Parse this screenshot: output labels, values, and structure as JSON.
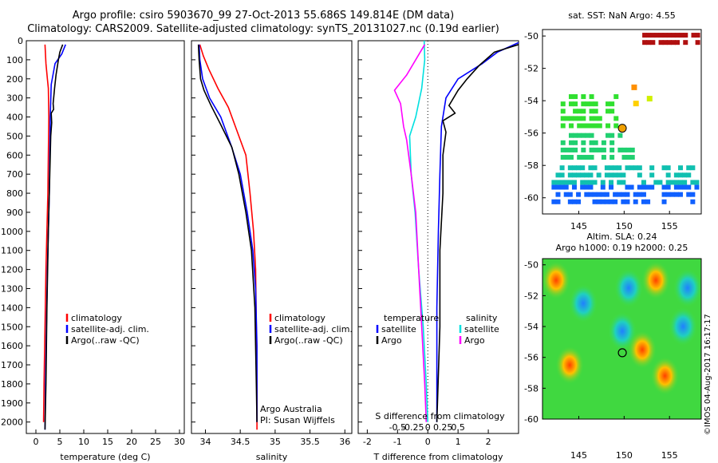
{
  "title_line1": "Argo profile: csiro 5903670_99 27-Oct-2013 55.686S 149.814E (DM data)",
  "title_line2": "Climatology: CARS2009. Satellite-adjusted climatology: synTS_20131027.nc (0.19d earlier)",
  "credit": "©IMOS 04-Aug-2017 16:17:17",
  "colors": {
    "climatology": "#ff0000",
    "satellite": "#0000ff",
    "argo": "#000000",
    "salinity_satellite": "#00e0e0",
    "salinity_argo": "#ff00ff"
  },
  "chart_data": [
    {
      "id": "temperature",
      "type": "line",
      "xlabel": "temperature (deg C)",
      "ylabel": "",
      "xlim": [
        -2,
        31
      ],
      "ylim": [
        2060,
        0
      ],
      "xticks": [
        0,
        5,
        10,
        15,
        20,
        25,
        30
      ],
      "yticks": [
        0,
        100,
        200,
        300,
        400,
        500,
        600,
        700,
        800,
        900,
        1000,
        1100,
        1200,
        1300,
        1400,
        1500,
        1600,
        1700,
        1800,
        1900,
        2000
      ],
      "legend": [
        {
          "label": "climatology",
          "color": "#ff0000"
        },
        {
          "label": "satellite-adj. clim.",
          "color": "#0000ff"
        },
        {
          "label": "Argo(..raw -QC)",
          "color": "#000000"
        }
      ],
      "series": [
        {
          "name": "climatology",
          "color": "#ff0000",
          "x": [
            1.9,
            2.1,
            2.4,
            2.6,
            2.7,
            2.6,
            2.5,
            2.3,
            2.1,
            1.9,
            1.7,
            1.6
          ],
          "y": [
            20,
            120,
            200,
            250,
            400,
            600,
            800,
            1000,
            1200,
            1500,
            1800,
            2000
          ]
        },
        {
          "name": "satellite-adj. clim.",
          "color": "#0000ff",
          "x": [
            6.2,
            5.4,
            4.0,
            3.2,
            3.0,
            2.9,
            2.8,
            2.6,
            2.4,
            2.2,
            2.0,
            1.9
          ],
          "y": [
            20,
            70,
            120,
            230,
            400,
            600,
            800,
            1000,
            1200,
            1500,
            1800,
            2040
          ]
        },
        {
          "name": "Argo(..raw -QC)",
          "color": "#000000",
          "x": [
            5.6,
            5.0,
            4.7,
            4.2,
            3.9,
            3.6,
            3.7,
            3.2,
            3.3,
            3.1,
            2.9,
            2.6,
            2.3,
            2.1,
            1.9
          ],
          "y": [
            20,
            60,
            100,
            180,
            250,
            330,
            360,
            380,
            430,
            500,
            700,
            1000,
            1400,
            1800,
            2040
          ]
        }
      ]
    },
    {
      "id": "salinity",
      "type": "line",
      "xlabel": "salinity",
      "ylabel": "",
      "xlim": [
        33.8,
        36.1
      ],
      "ylim": [
        2060,
        0
      ],
      "xticks": [
        34,
        34.5,
        35,
        35.5,
        36
      ],
      "legend": [
        {
          "label": "climatology",
          "color": "#ff0000"
        },
        {
          "label": "satellite-adj. clim.",
          "color": "#0000ff"
        },
        {
          "label": "Argo(..raw -QC)",
          "color": "#000000"
        }
      ],
      "annotations": [
        "Argo Australia",
        "PI: Susan Wijffels"
      ],
      "series": [
        {
          "name": "climatology",
          "color": "#ff0000",
          "x": [
            33.92,
            33.97,
            34.05,
            34.18,
            34.33,
            34.48,
            34.58,
            34.64,
            34.69,
            34.72,
            34.73,
            34.74,
            34.74
          ],
          "y": [
            20,
            80,
            150,
            250,
            350,
            500,
            600,
            800,
            1000,
            1200,
            1500,
            1800,
            2040
          ]
        },
        {
          "name": "satellite-adj. clim.",
          "color": "#0000ff",
          "x": [
            33.91,
            33.92,
            33.96,
            34.06,
            34.22,
            34.37,
            34.5,
            34.6,
            34.68,
            34.72,
            34.74,
            34.74
          ],
          "y": [
            20,
            100,
            200,
            300,
            400,
            550,
            700,
            900,
            1100,
            1300,
            1600,
            2000
          ]
        },
        {
          "name": "Argo(..raw -QC)",
          "color": "#000000",
          "x": [
            33.9,
            33.91,
            33.93,
            33.98,
            34.08,
            34.22,
            34.38,
            34.48,
            34.58,
            34.66,
            34.71,
            34.73,
            34.74
          ],
          "y": [
            20,
            100,
            200,
            260,
            340,
            440,
            560,
            700,
            900,
            1100,
            1400,
            1800,
            2000
          ]
        }
      ]
    },
    {
      "id": "differences",
      "type": "line",
      "xlabel": "T difference from climatology",
      "xlabel2": "S difference from climatology",
      "ylabel": "",
      "xlim": [
        -2.3,
        3.0
      ],
      "ylim": [
        2060,
        0
      ],
      "xticks": [
        -2,
        -1,
        0,
        1,
        2
      ],
      "xticks2_values": [
        -0.5,
        -0.25,
        0,
        0.25,
        0.5
      ],
      "xticks2_labels": [
        "-0.5",
        "-0.25",
        "0",
        "0.25",
        "0.5"
      ],
      "legend_temperature": {
        "heading": "temperature",
        "entries": [
          {
            "label": "satellite",
            "color": "#0000ff"
          },
          {
            "label": "Argo",
            "color": "#000000"
          }
        ]
      },
      "legend_salinity": {
        "heading": "salinity",
        "entries": [
          {
            "label": "satellite",
            "color": "#00e0e0"
          },
          {
            "label": "Argo",
            "color": "#ff00ff"
          }
        ]
      },
      "series": [
        {
          "name": "T satellite",
          "color": "#0000ff",
          "x": [
            3.0,
            2.3,
            1.8,
            1.0,
            0.6,
            0.45,
            0.4,
            0.35,
            0.3,
            0.3,
            0.3
          ],
          "y": [
            10,
            60,
            120,
            200,
            300,
            450,
            700,
            1000,
            1400,
            1800,
            2000
          ]
        },
        {
          "name": "T Argo",
          "color": "#000000",
          "x": [
            3.0,
            2.2,
            1.7,
            1.3,
            1.0,
            0.7,
            0.9,
            0.5,
            0.6,
            0.5,
            0.5,
            0.4,
            0.4,
            0.3
          ],
          "y": [
            20,
            60,
            130,
            200,
            260,
            340,
            380,
            420,
            480,
            600,
            800,
            1100,
            1500,
            2000
          ]
        },
        {
          "name": "S satellite",
          "color": "#00e0e0",
          "x": [
            -0.12,
            -0.1,
            -0.2,
            -0.4,
            -0.6,
            -0.55,
            -0.42,
            -0.3,
            -0.15,
            -0.05,
            0.0
          ],
          "y": [
            0,
            100,
            250,
            400,
            500,
            700,
            900,
            1200,
            1500,
            1800,
            2000
          ]
        },
        {
          "name": "S Argo",
          "color": "#ff00ff",
          "x": [
            -0.1,
            -0.7,
            -1.1,
            -0.9,
            -0.8,
            -0.7,
            -0.55,
            -0.4,
            -0.3,
            -0.2,
            -0.1,
            -0.05
          ],
          "y": [
            20,
            180,
            260,
            330,
            450,
            520,
            700,
            900,
            1200,
            1500,
            1800,
            2000
          ]
        }
      ]
    },
    {
      "id": "sst_map",
      "type": "heatmap",
      "title": "sat. SST: NaN Argo: 4.55",
      "xlim": [
        141,
        158.5
      ],
      "ylim": [
        -61,
        -49.6
      ],
      "xticks": [
        145,
        150,
        155
      ],
      "yticks": [
        -50,
        -52,
        -54,
        -56,
        -58,
        -60
      ],
      "marker": {
        "lon": 149.8,
        "lat": -55.7
      },
      "blocks": [
        {
          "lon0": 142,
          "lon1": 158,
          "lat0": -60.2,
          "lat1": -59.2,
          "value": "cold"
        },
        {
          "lon0": 142,
          "lon1": 158,
          "lat0": -59.2,
          "lat1": -58.0,
          "value": "cool"
        },
        {
          "lon0": 143,
          "lon1": 151,
          "lat0": -57.6,
          "lat1": -56.0,
          "value": "mid"
        },
        {
          "lon0": 143,
          "lon1": 149,
          "lat0": -55.6,
          "lat1": -53.6,
          "value": "warm-mid"
        },
        {
          "lon0": 152,
          "lon1": 158,
          "lat0": -50.5,
          "lat1": -49.8,
          "value": "hot"
        }
      ]
    },
    {
      "id": "sla_map",
      "type": "heatmap",
      "title_line1": "Altim. SLA: 0.24",
      "title_line2": "Argo h1000: 0.19 h2000: 0.25",
      "xlim": [
        141,
        158.5
      ],
      "ylim": [
        -60,
        -49.6
      ],
      "xticks": [
        145,
        150,
        155
      ],
      "yticks": [
        -50,
        -52,
        -54,
        -56,
        -58,
        -60
      ],
      "marker": {
        "lon": 149.8,
        "lat": -55.7
      },
      "features": [
        {
          "lon": 142.5,
          "lat": -51.0,
          "kind": "high"
        },
        {
          "lon": 145.5,
          "lat": -52.5,
          "kind": "low"
        },
        {
          "lon": 150.5,
          "lat": -51.5,
          "kind": "low"
        },
        {
          "lon": 153.5,
          "lat": -51.0,
          "kind": "high"
        },
        {
          "lon": 157.0,
          "lat": -51.5,
          "kind": "low"
        },
        {
          "lon": 149.8,
          "lat": -54.3,
          "kind": "low"
        },
        {
          "lon": 152.0,
          "lat": -55.5,
          "kind": "high"
        },
        {
          "lon": 154.5,
          "lat": -57.2,
          "kind": "high"
        },
        {
          "lon": 144.0,
          "lat": -56.5,
          "kind": "high"
        },
        {
          "lon": 156.5,
          "lat": -54.0,
          "kind": "low"
        }
      ]
    }
  ]
}
